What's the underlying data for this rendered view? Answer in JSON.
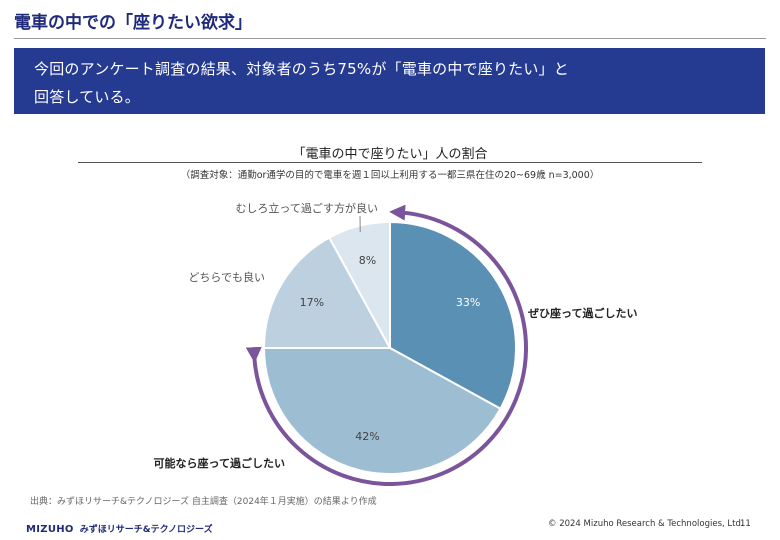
{
  "page": {
    "title": "電車の中での「座りたい欲求」",
    "banner_line1": "今回のアンケート調査の結果、対象者のうち75%が「電車の中で座りたい」と",
    "banner_line2": "回答している。",
    "source": "出典：みずほリサーチ&テクノロジーズ 自主調査（2024年１月実施）の結果より作成",
    "logo_brand": "MIZUHO",
    "logo_brand_jp": "みずほリサーチ&テクノロジーズ",
    "copyright": "© 2024 Mizuho Research & Technologies, Ltd.",
    "page_number": "11"
  },
  "chart_data": {
    "type": "pie",
    "title": "「電車の中で座りたい」人の割合",
    "subtitle": "（調査対象：通勤or通学の目的で電車を週１回以上利用する一都三県在住の20~69歳 n=3,000）",
    "categories": [
      "ぜひ座って過ごしたい",
      "可能なら座って過ごしたい",
      "どちらでも良い",
      "むしろ立って過ごす方が良い"
    ],
    "values": [
      33,
      42,
      17,
      8
    ],
    "value_labels": [
      "33%",
      "42%",
      "17%",
      "8%"
    ],
    "colors": [
      "#5b90b5",
      "#9dbdd3",
      "#bcd0df",
      "#dbe6ee"
    ],
    "label_colors": [
      "#ffffff",
      "#444444",
      "#444444",
      "#444444"
    ],
    "highlight_color": "#7b559b",
    "highlighted_slices": [
      0,
      1
    ]
  }
}
